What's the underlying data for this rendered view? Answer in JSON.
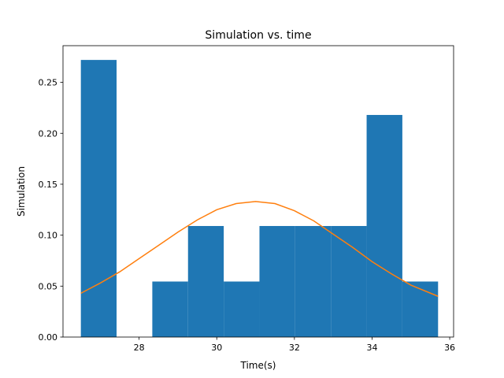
{
  "chart_data": {
    "type": "bar",
    "title": "Simulation vs. time",
    "xlabel": "Time(s)",
    "ylabel": "Simulation",
    "xlim": [
      26.04,
      36.1
    ],
    "ylim": [
      0,
      0.286
    ],
    "xticks": [
      28,
      30,
      32,
      34,
      36
    ],
    "yticks": [
      0.0,
      0.05,
      0.1,
      0.15,
      0.2,
      0.25
    ],
    "xtick_labels": [
      "28",
      "30",
      "32",
      "34",
      "36"
    ],
    "ytick_labels": [
      "0.00",
      "0.05",
      "0.10",
      "0.15",
      "0.20",
      "0.25"
    ],
    "grid": false,
    "histogram": {
      "name": "",
      "color": "#1f77b4",
      "bin_edges": [
        26.5,
        27.42,
        28.34,
        29.26,
        30.18,
        31.1,
        32.02,
        32.94,
        33.86,
        34.78,
        35.7
      ],
      "values": [
        0.272,
        0.0,
        0.0545,
        0.109,
        0.0545,
        0.109,
        0.109,
        0.109,
        0.218,
        0.0545
      ]
    },
    "series": [
      {
        "name": "",
        "type": "line",
        "color": "#ff7f0e",
        "x": [
          26.5,
          27.0,
          27.5,
          28.0,
          28.5,
          29.0,
          29.5,
          30.0,
          30.5,
          31.0,
          31.5,
          32.0,
          32.5,
          33.0,
          33.5,
          34.0,
          34.5,
          35.0,
          35.7
        ],
        "y": [
          0.043,
          0.053,
          0.064,
          0.077,
          0.09,
          0.103,
          0.115,
          0.125,
          0.131,
          0.133,
          0.131,
          0.124,
          0.114,
          0.101,
          0.088,
          0.074,
          0.062,
          0.051,
          0.04
        ]
      }
    ]
  }
}
